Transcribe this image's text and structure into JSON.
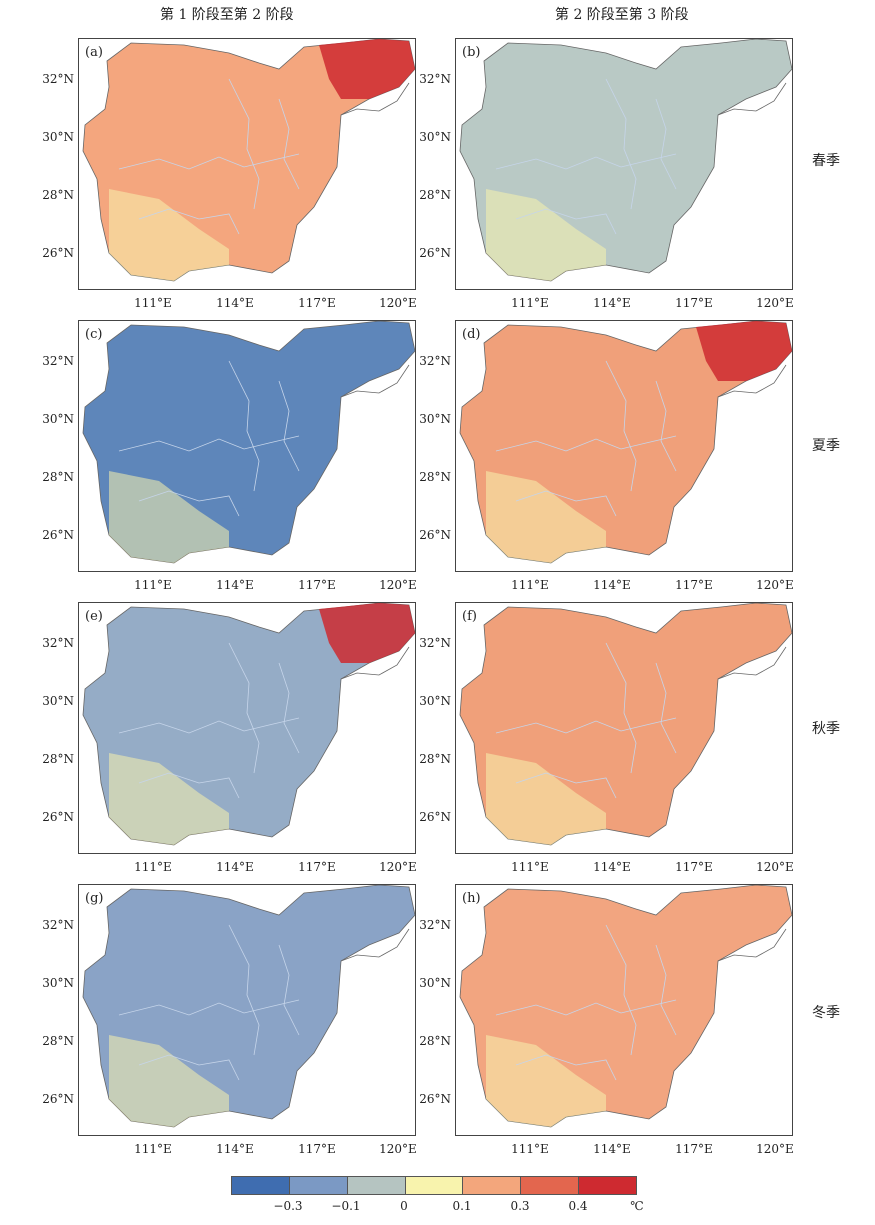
{
  "columns": [
    "第 1 阶段至第 2 阶段",
    "第 2 阶段至第 3 阶段"
  ],
  "seasons": [
    "春季",
    "夏季",
    "秋季",
    "冬季"
  ],
  "panels": [
    {
      "label": "(a)",
      "fill": "#f4a67e",
      "hot": true
    },
    {
      "label": "(b)",
      "fill": "#b9c9c5",
      "hot": false
    },
    {
      "label": "(c)",
      "fill": "#5e86ba",
      "hot": false
    },
    {
      "label": "(d)",
      "fill": "#f0a07a",
      "hot": true
    },
    {
      "label": "(e)",
      "fill": "#95acc6",
      "hot": true
    },
    {
      "label": "(f)",
      "fill": "#f0a07a",
      "hot": false
    },
    {
      "label": "(g)",
      "fill": "#8aa3c6",
      "hot": false
    },
    {
      "label": "(h)",
      "fill": "#f2a580",
      "hot": false
    }
  ],
  "axes": {
    "y_labels": [
      "32°N",
      "30°N",
      "28°N",
      "26°N"
    ],
    "x_labels": [
      "111°E",
      "114°E",
      "117°E",
      "120°E"
    ]
  },
  "legend": {
    "colors": [
      "#3f6db0",
      "#7b99c4",
      "#b5c4c1",
      "#f8f3ad",
      "#f3a67c",
      "#e3664e",
      "#ce2a30"
    ],
    "labels": [
      "−0.3",
      "−0.1",
      "0",
      "0.1",
      "0.3",
      "0.4",
      "℃"
    ]
  }
}
